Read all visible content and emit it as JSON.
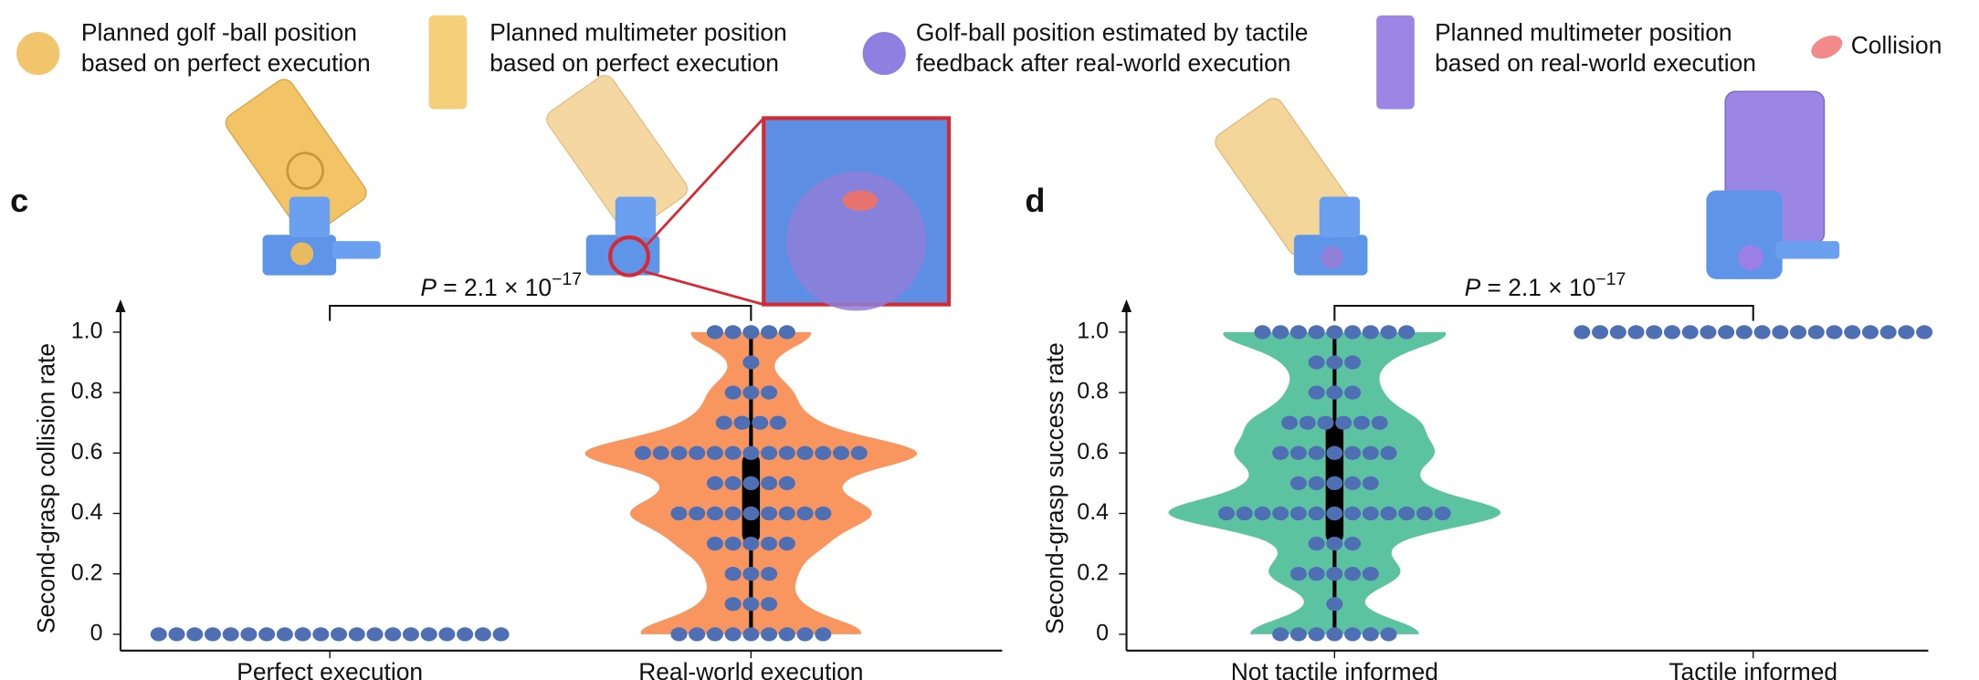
{
  "legend": [
    {
      "lines": [
        "Planned golf -ball position",
        "based on perfect execution"
      ],
      "color": "#f2c56c"
    },
    {
      "lines": [
        "Planned multimeter position",
        "based on perfect execution"
      ],
      "color": "#f5cf7a"
    },
    {
      "lines": [
        "Golf-ball position estimated by tactile",
        "feedback after real-world execution"
      ],
      "color": "#8f7fe0"
    },
    {
      "lines": [
        "Planned multimeter position",
        "based on real-world execution"
      ],
      "color": "#9b86e6"
    },
    {
      "lines": [
        "Collision"
      ],
      "color": "#f28a8a"
    }
  ],
  "chart_data": [
    {
      "type": "violin",
      "panel": "c",
      "ylabel": "Second-grasp collision rate",
      "categories": [
        "Perfect execution",
        "Real-world execution"
      ],
      "values": [
        [
          0,
          0,
          0,
          0,
          0,
          0,
          0,
          0,
          0,
          0,
          0,
          0,
          0,
          0,
          0,
          0,
          0,
          0,
          0,
          0
        ],
        [
          0,
          0,
          0,
          0,
          0,
          0,
          0,
          0,
          0,
          0.1,
          0.1,
          0.1,
          0.2,
          0.2,
          0.2,
          0.3,
          0.3,
          0.3,
          0.3,
          0.3,
          0.4,
          0.4,
          0.4,
          0.4,
          0.4,
          0.4,
          0.4,
          0.4,
          0.4,
          0.5,
          0.5,
          0.5,
          0.5,
          0.5,
          0.6,
          0.6,
          0.6,
          0.6,
          0.6,
          0.6,
          0.6,
          0.6,
          0.6,
          0.6,
          0.6,
          0.6,
          0.6,
          0.7,
          0.7,
          0.7,
          0.7,
          0.8,
          0.8,
          0.8,
          0.9,
          1,
          1,
          1,
          1,
          1
        ]
      ],
      "color": "#f9955e",
      "point_color": "#4f6fb5",
      "ylim": [
        -0.05,
        1.1
      ],
      "yticks": [
        0,
        0.2,
        0.4,
        0.6,
        0.8,
        {
          "value": 1,
          "label": "1.0"
        }
      ],
      "annotation": {
        "p": "P",
        "text": " = 2.1 × 10",
        "exponent": "−17"
      }
    },
    {
      "type": "violin",
      "panel": "d",
      "ylabel": "Second-grasp success rate",
      "categories": [
        "Not tactile informed",
        "Tactile informed"
      ],
      "values": [
        [
          0,
          0,
          0,
          0,
          0,
          0,
          0,
          0.1,
          0.2,
          0.2,
          0.2,
          0.2,
          0.2,
          0.3,
          0.3,
          0.3,
          0.4,
          0.4,
          0.4,
          0.4,
          0.4,
          0.4,
          0.4,
          0.4,
          0.4,
          0.4,
          0.4,
          0.4,
          0.4,
          0.5,
          0.5,
          0.5,
          0.5,
          0.5,
          0.6,
          0.6,
          0.6,
          0.6,
          0.6,
          0.6,
          0.6,
          0.7,
          0.7,
          0.7,
          0.7,
          0.7,
          0.7,
          0.8,
          0.8,
          0.8,
          0.9,
          0.9,
          0.9,
          1,
          1,
          1,
          1,
          1,
          1,
          1,
          1,
          1
        ],
        [
          1,
          1,
          1,
          1,
          1,
          1,
          1,
          1,
          1,
          1,
          1,
          1,
          1,
          1,
          1,
          1,
          1,
          1,
          1,
          1
        ]
      ],
      "color": "#5cc3a0",
      "point_color": "#4f6fb5",
      "ylim": [
        -0.05,
        1.1
      ],
      "yticks": [
        0,
        0.2,
        0.4,
        0.6,
        0.8,
        {
          "value": 1,
          "label": "1.0"
        }
      ],
      "annotation": {
        "p": "P",
        "text": " = 2.1 × 10",
        "exponent": "−17"
      }
    }
  ]
}
